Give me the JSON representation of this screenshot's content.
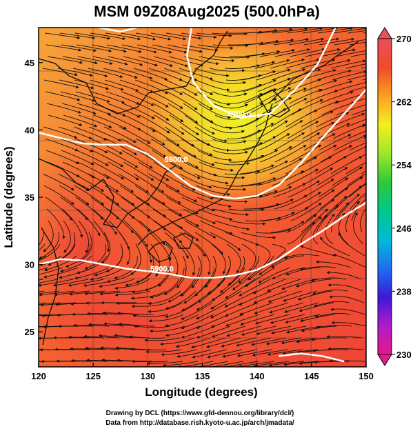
{
  "title": "MSM 09Z08Aug2025 (500.0hPa)",
  "xlabel": "Longitude (degrees)",
  "ylabel": "Latitude  (degrees)",
  "credits": [
    "Drawing by DCL (https://www.gfd-dennou.org/library/dcl/)",
    "Data from http://database.rish.kyoto-u.ac.jp/arch/jmadata/"
  ],
  "map": {
    "lon_range": [
      120,
      150
    ],
    "lat_range": [
      22.4,
      47.6
    ],
    "lon_ticks": [
      120,
      125,
      130,
      135,
      140,
      145,
      150
    ],
    "lat_ticks": [
      25,
      30,
      35,
      40,
      45
    ],
    "grid": true
  },
  "colorbar": {
    "min": 230,
    "max": 270,
    "tick_labels": [
      "270",
      "262",
      "254",
      "246",
      "238",
      "230"
    ],
    "tick_values": [
      270,
      262,
      254,
      246,
      238,
      230
    ],
    "colors": [
      "#e8188c",
      "#b01cc8",
      "#3a1ad6",
      "#1f6ff0",
      "#00bcd8",
      "#00c88a",
      "#2ec83a",
      "#9ee82a",
      "#f2f020",
      "#fca020",
      "#f24a2a",
      "#e8505a"
    ]
  },
  "contours": [
    {
      "label": "5700.0",
      "label_lon": 138.4,
      "label_lat": 41.0
    },
    {
      "label": "5800.0",
      "label_lon": 132.6,
      "label_lat": 37.6
    },
    {
      "label": "5900.0",
      "label_lon": 131.3,
      "label_lat": 29.5
    }
  ]
}
